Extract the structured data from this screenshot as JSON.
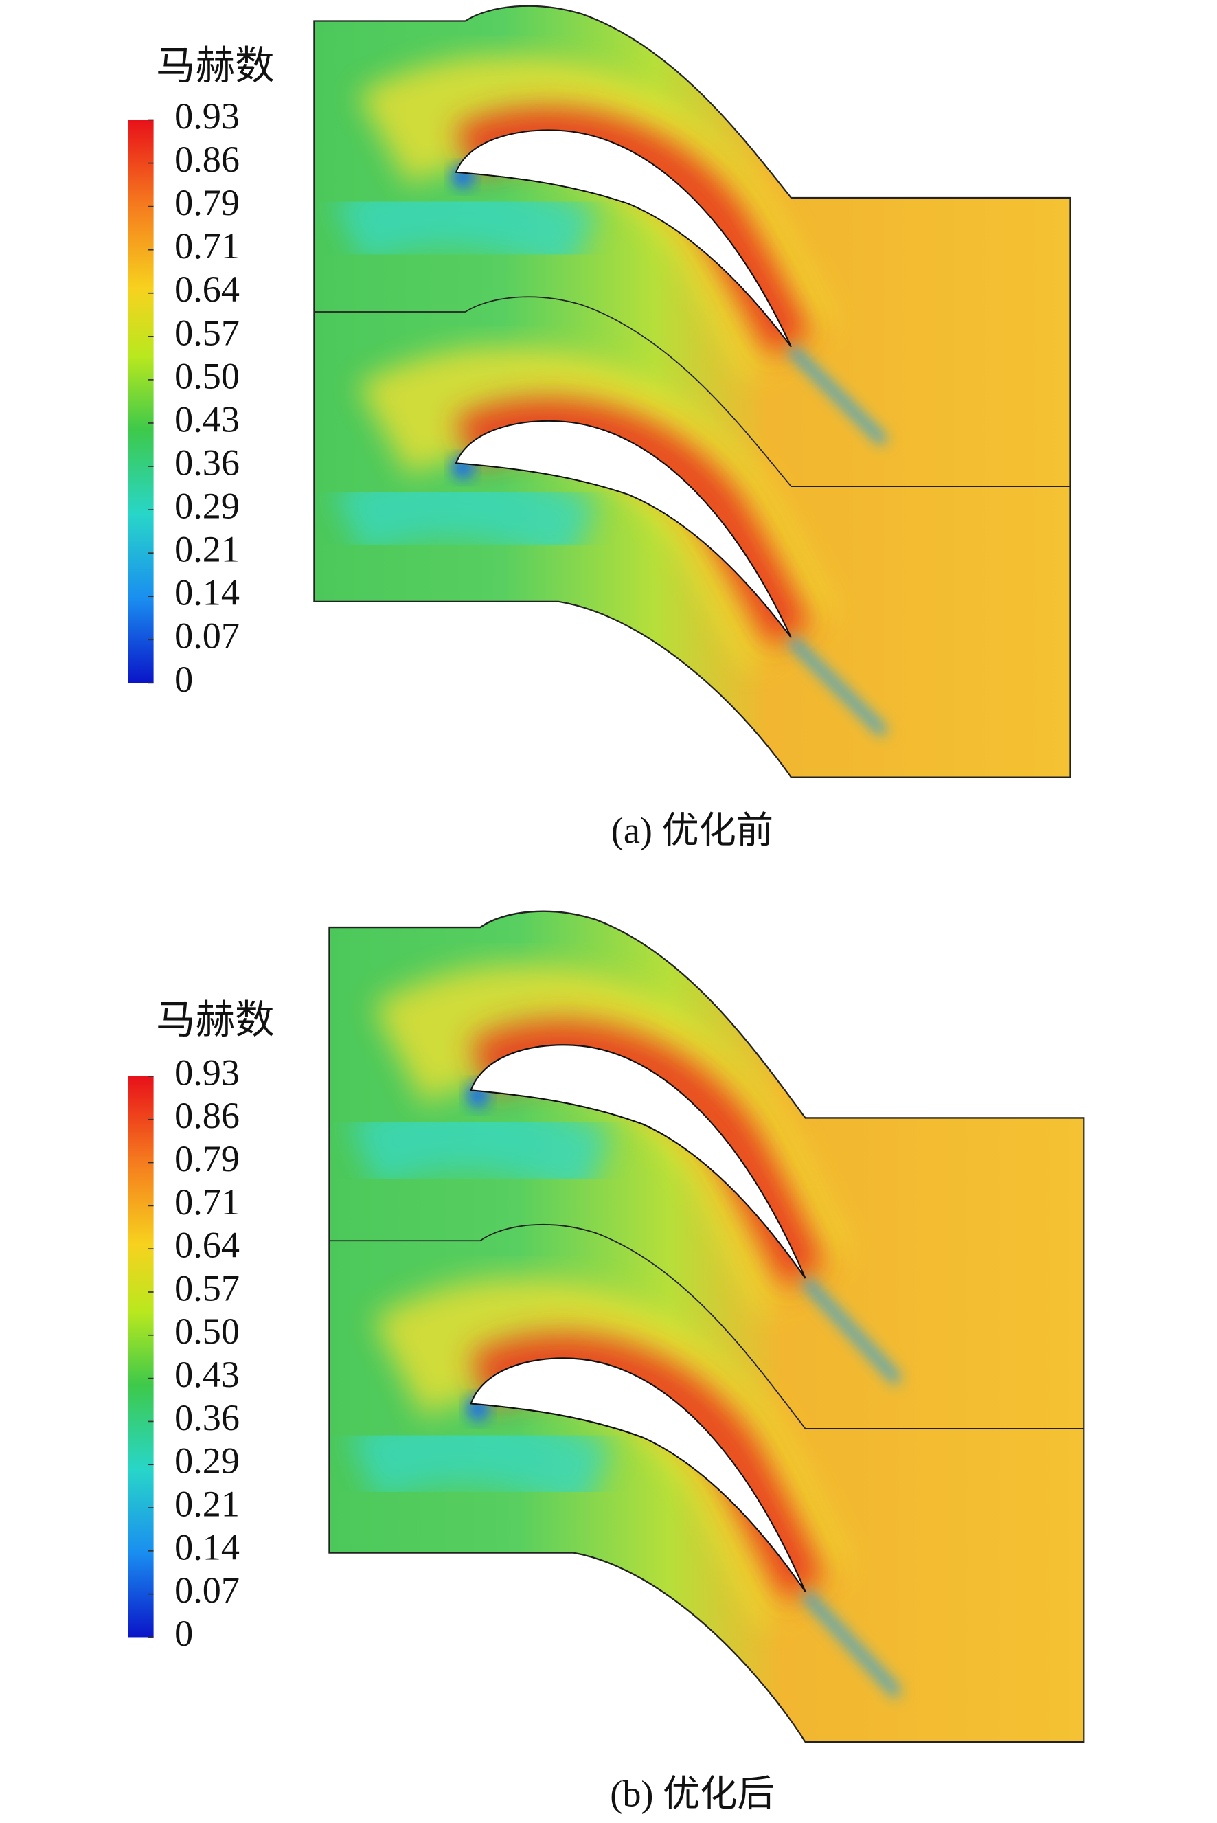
{
  "panels": [
    {
      "legend": {
        "title": "马赫数",
        "ticks": [
          "0.93",
          "0.86",
          "0.79",
          "0.71",
          "0.64",
          "0.57",
          "0.50",
          "0.43",
          "0.36",
          "0.29",
          "0.21",
          "0.14",
          "0.07",
          "0"
        ]
      },
      "caption": "(a) 优化前"
    },
    {
      "legend": {
        "title": "马赫数",
        "ticks": [
          "0.93",
          "0.86",
          "0.79",
          "0.71",
          "0.64",
          "0.57",
          "0.50",
          "0.43",
          "0.36",
          "0.29",
          "0.21",
          "0.14",
          "0.07",
          "0"
        ]
      },
      "caption": "(b) 优化后"
    }
  ]
}
